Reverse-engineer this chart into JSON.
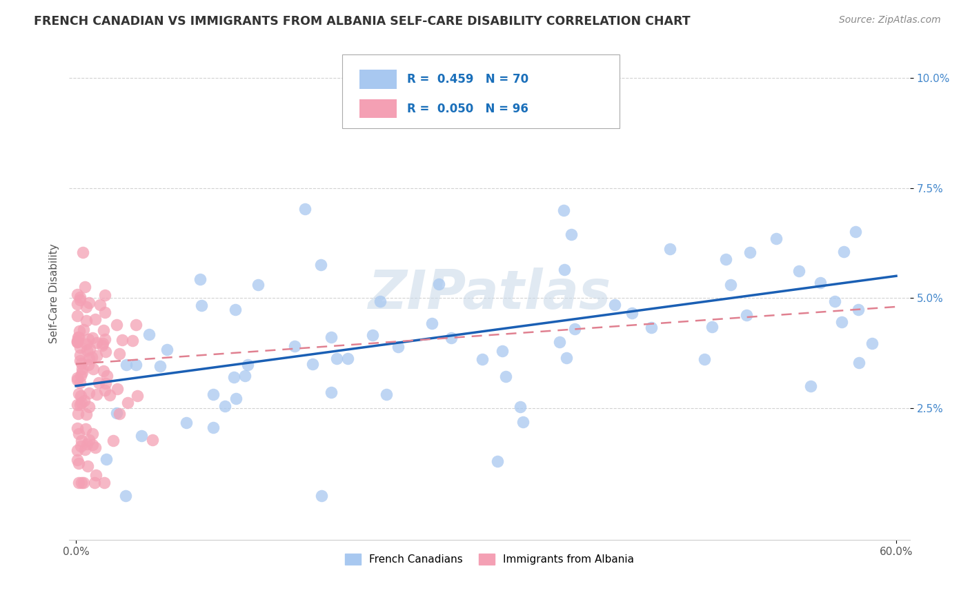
{
  "title": "FRENCH CANADIAN VS IMMIGRANTS FROM ALBANIA SELF-CARE DISABILITY CORRELATION CHART",
  "source_text": "Source: ZipAtlas.com",
  "ylabel": "Self-Care Disability",
  "xlim": [
    -0.005,
    0.61
  ],
  "ylim": [
    -0.005,
    0.107
  ],
  "xticks": [
    0.0,
    0.6
  ],
  "xticklabels": [
    "0.0%",
    "60.0%"
  ],
  "yticks": [
    0.025,
    0.05,
    0.075,
    0.1
  ],
  "yticklabels": [
    "2.5%",
    "5.0%",
    "7.5%",
    "10.0%"
  ],
  "blue_color": "#a8c8f0",
  "pink_color": "#f4a0b4",
  "blue_line_color": "#1a5fb4",
  "pink_line_color": "#e08090",
  "R_blue": 0.459,
  "N_blue": 70,
  "R_pink": 0.05,
  "N_pink": 96,
  "legend_label_blue": "French Canadians",
  "legend_label_pink": "Immigrants from Albania",
  "watermark": "ZIPatlas",
  "legend_R_color": "#1a6fba",
  "legend_N_color": "#e05050"
}
